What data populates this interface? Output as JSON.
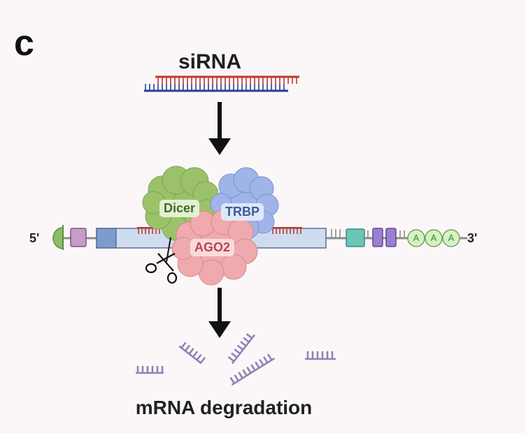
{
  "panel_label": "c",
  "title": "siRNA",
  "caption": "mRNA degradation",
  "mrna": {
    "five_prime": "5'",
    "three_prime": "3'",
    "poly_a": [
      "A",
      "A",
      "A"
    ]
  },
  "proteins": {
    "dicer": "Dicer",
    "trbp": "TRBP",
    "ago2": "AGO2"
  },
  "colors": {
    "sense_strand": "#c0392b",
    "antisense_strand": "#2c3e90",
    "arrow": "#111111",
    "dicer": "#9bc26a",
    "trbp": "#9fb4e8",
    "ago2": "#eeaaad",
    "fragments": "#8e84b2"
  }
}
